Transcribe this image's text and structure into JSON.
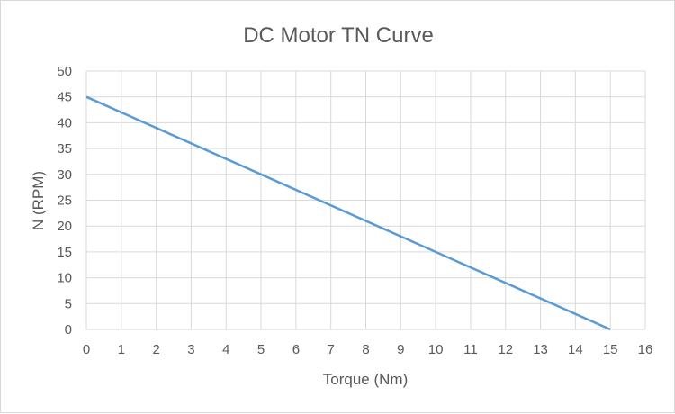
{
  "chart_data": {
    "type": "line",
    "title": "DC Motor TN Curve",
    "xlabel": "Torque (Nm)",
    "ylabel": "N (RPM)",
    "xlim": [
      0,
      16
    ],
    "ylim": [
      0,
      50
    ],
    "xticks": [
      0,
      1,
      2,
      3,
      4,
      5,
      6,
      7,
      8,
      9,
      10,
      11,
      12,
      13,
      14,
      15,
      16
    ],
    "yticks": [
      0,
      5,
      10,
      15,
      20,
      25,
      30,
      35,
      40,
      45,
      50
    ],
    "grid": true,
    "series": [
      {
        "name": "N",
        "color": "#5b9bd5",
        "x": [
          0,
          15
        ],
        "y": [
          45,
          0
        ]
      }
    ]
  }
}
